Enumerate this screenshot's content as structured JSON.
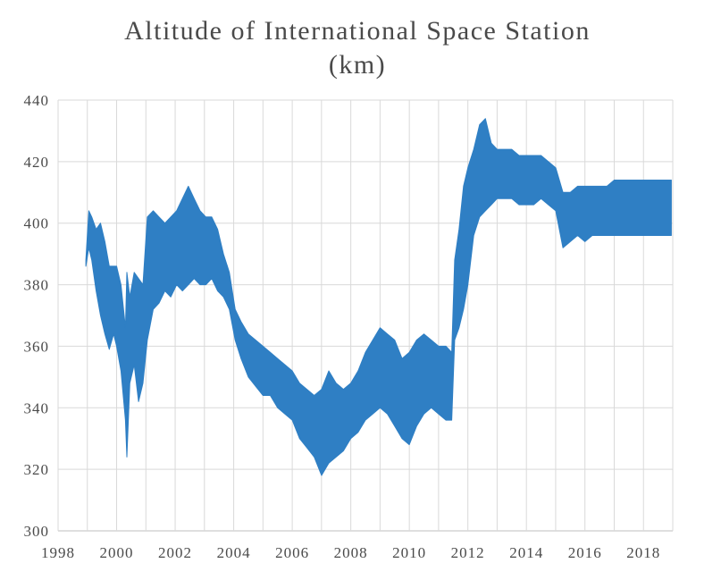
{
  "chart_data": {
    "type": "line",
    "title": "Altitude of International Space Station",
    "subtitle": "(km)",
    "xlabel": "",
    "ylabel": "",
    "xlim": [
      1998,
      2019
    ],
    "ylim": [
      300,
      440
    ],
    "x_ticks": [
      "1998",
      "2000",
      "2002",
      "2004",
      "2006",
      "2008",
      "2010",
      "2012",
      "2014",
      "2016",
      "2018"
    ],
    "y_ticks": [
      "300",
      "320",
      "340",
      "360",
      "380",
      "400",
      "420",
      "440"
    ],
    "grid": true,
    "legend": "none",
    "series_color": "#2f7fc4",
    "series": [
      {
        "x": [
          1998.95,
          1999.05,
          1999.15,
          1999.3,
          1999.45,
          1999.6,
          1999.75,
          1999.9,
          2000.0,
          2000.15,
          2000.3,
          2000.35,
          2000.45,
          2000.6,
          2000.75,
          2000.9,
          2001.05,
          2001.25,
          2001.45,
          2001.65,
          2001.85,
          2002.05,
          2002.25,
          2002.45,
          2002.65,
          2002.85,
          2003.05,
          2003.25,
          2003.45,
          2003.65,
          2003.85,
          2004.05,
          2004.25,
          2004.5,
          2004.75,
          2005.0,
          2005.25,
          2005.5,
          2005.75,
          2006.0,
          2006.25,
          2006.5,
          2006.75,
          2007.0,
          2007.25,
          2007.5,
          2007.75,
          2008.0,
          2008.25,
          2008.5,
          2008.75,
          2009.0,
          2009.25,
          2009.5,
          2009.75,
          2010.0,
          2010.25,
          2010.5,
          2010.75,
          2011.0,
          2011.25,
          2011.45,
          2011.55,
          2011.7,
          2011.85,
          2012.0,
          2012.2,
          2012.4,
          2012.6,
          2012.8,
          2013.0,
          2013.25,
          2013.5,
          2013.75,
          2014.0,
          2014.25,
          2014.5,
          2014.75,
          2015.0,
          2015.25,
          2015.5,
          2015.75,
          2016.0,
          2016.25,
          2016.5,
          2016.75,
          2017.0,
          2017.25,
          2017.5,
          2017.75,
          2018.0,
          2018.25,
          2018.5,
          2018.75,
          2018.95
        ],
        "y_low": [
          386,
          392,
          388,
          378,
          370,
          364,
          359,
          364,
          360,
          352,
          336,
          324,
          348,
          354,
          342,
          348,
          362,
          372,
          374,
          378,
          376,
          380,
          378,
          380,
          382,
          380,
          380,
          382,
          378,
          376,
          372,
          362,
          356,
          350,
          347,
          344,
          344,
          340,
          338,
          336,
          330,
          327,
          324,
          318,
          322,
          324,
          326,
          330,
          332,
          336,
          338,
          340,
          338,
          334,
          330,
          328,
          334,
          338,
          340,
          338,
          336,
          336,
          362,
          366,
          372,
          380,
          396,
          402,
          404,
          406,
          408,
          408,
          408,
          406,
          406,
          406,
          408,
          406,
          404,
          392,
          394,
          396,
          394,
          396,
          396,
          396,
          396,
          396,
          396,
          396,
          396,
          396,
          396,
          396,
          396
        ],
        "y_high": [
          388,
          404,
          402,
          398,
          400,
          394,
          386,
          386,
          386,
          380,
          366,
          384,
          376,
          384,
          382,
          380,
          402,
          404,
          402,
          400,
          402,
          404,
          408,
          412,
          408,
          404,
          402,
          402,
          398,
          390,
          384,
          372,
          368,
          364,
          362,
          360,
          358,
          356,
          354,
          352,
          348,
          346,
          344,
          346,
          352,
          348,
          346,
          348,
          352,
          358,
          362,
          366,
          364,
          362,
          356,
          358,
          362,
          364,
          362,
          360,
          360,
          358,
          388,
          398,
          412,
          418,
          424,
          432,
          434,
          426,
          424,
          424,
          424,
          422,
          422,
          422,
          422,
          420,
          418,
          410,
          410,
          412,
          412,
          412,
          412,
          412,
          414,
          414,
          414,
          414,
          414,
          414,
          414,
          414,
          414
        ]
      }
    ]
  }
}
